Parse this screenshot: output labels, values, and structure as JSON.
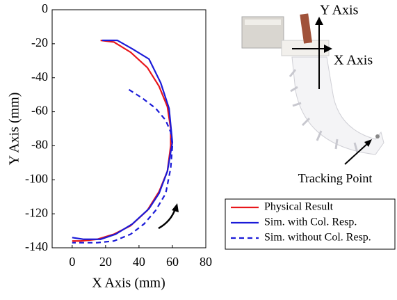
{
  "chart_data": {
    "type": "line",
    "xlabel": "X Axis (mm)",
    "ylabel": "Y Axis (mm)",
    "xlim": [
      -12,
      80
    ],
    "ylim": [
      -140,
      0
    ],
    "xticks": [
      0,
      20,
      40,
      60,
      80
    ],
    "yticks": [
      0,
      -20,
      -40,
      -60,
      -80,
      -100,
      -120,
      -140
    ],
    "series": [
      {
        "name": "Physical Result",
        "color": "#e8161b",
        "dashed": false,
        "x": [
          17,
          25,
          35,
          45,
          52,
          57,
          59,
          59,
          57,
          52,
          45,
          35,
          25,
          15,
          5,
          0
        ],
        "values": [
          -18,
          -19,
          -25,
          -34,
          -45,
          -57,
          -70,
          -80,
          -95,
          -107,
          -118,
          -127,
          -132,
          -135,
          -136,
          -136
        ]
      },
      {
        "name": "Sim. with Col. Resp.",
        "color": "#1a1ad8",
        "dashed": false,
        "x": [
          18,
          27,
          36,
          46,
          53,
          58,
          60,
          57,
          52,
          46,
          36,
          26,
          17,
          7,
          0
        ],
        "values": [
          -18,
          -18,
          -23,
          -29,
          -43,
          -58,
          -78,
          -95,
          -108,
          -117,
          -126,
          -132,
          -135,
          -135,
          -134
        ]
      },
      {
        "name": "Sim. without Col. Resp.",
        "color": "#1a1ad8",
        "dashed": true,
        "x": [
          34,
          42,
          50,
          56,
          59,
          60,
          59,
          56,
          50,
          43,
          35,
          25,
          15,
          7,
          0
        ],
        "values": [
          -47,
          -52,
          -58,
          -65,
          -72,
          -80,
          -93,
          -108,
          -118,
          -126,
          -132,
          -136,
          -137,
          -137,
          -137
        ]
      }
    ]
  },
  "photo": {
    "y_axis_label": "Y Axis",
    "x_axis_label": "X Axis",
    "tracking_label": "Tracking Point"
  }
}
